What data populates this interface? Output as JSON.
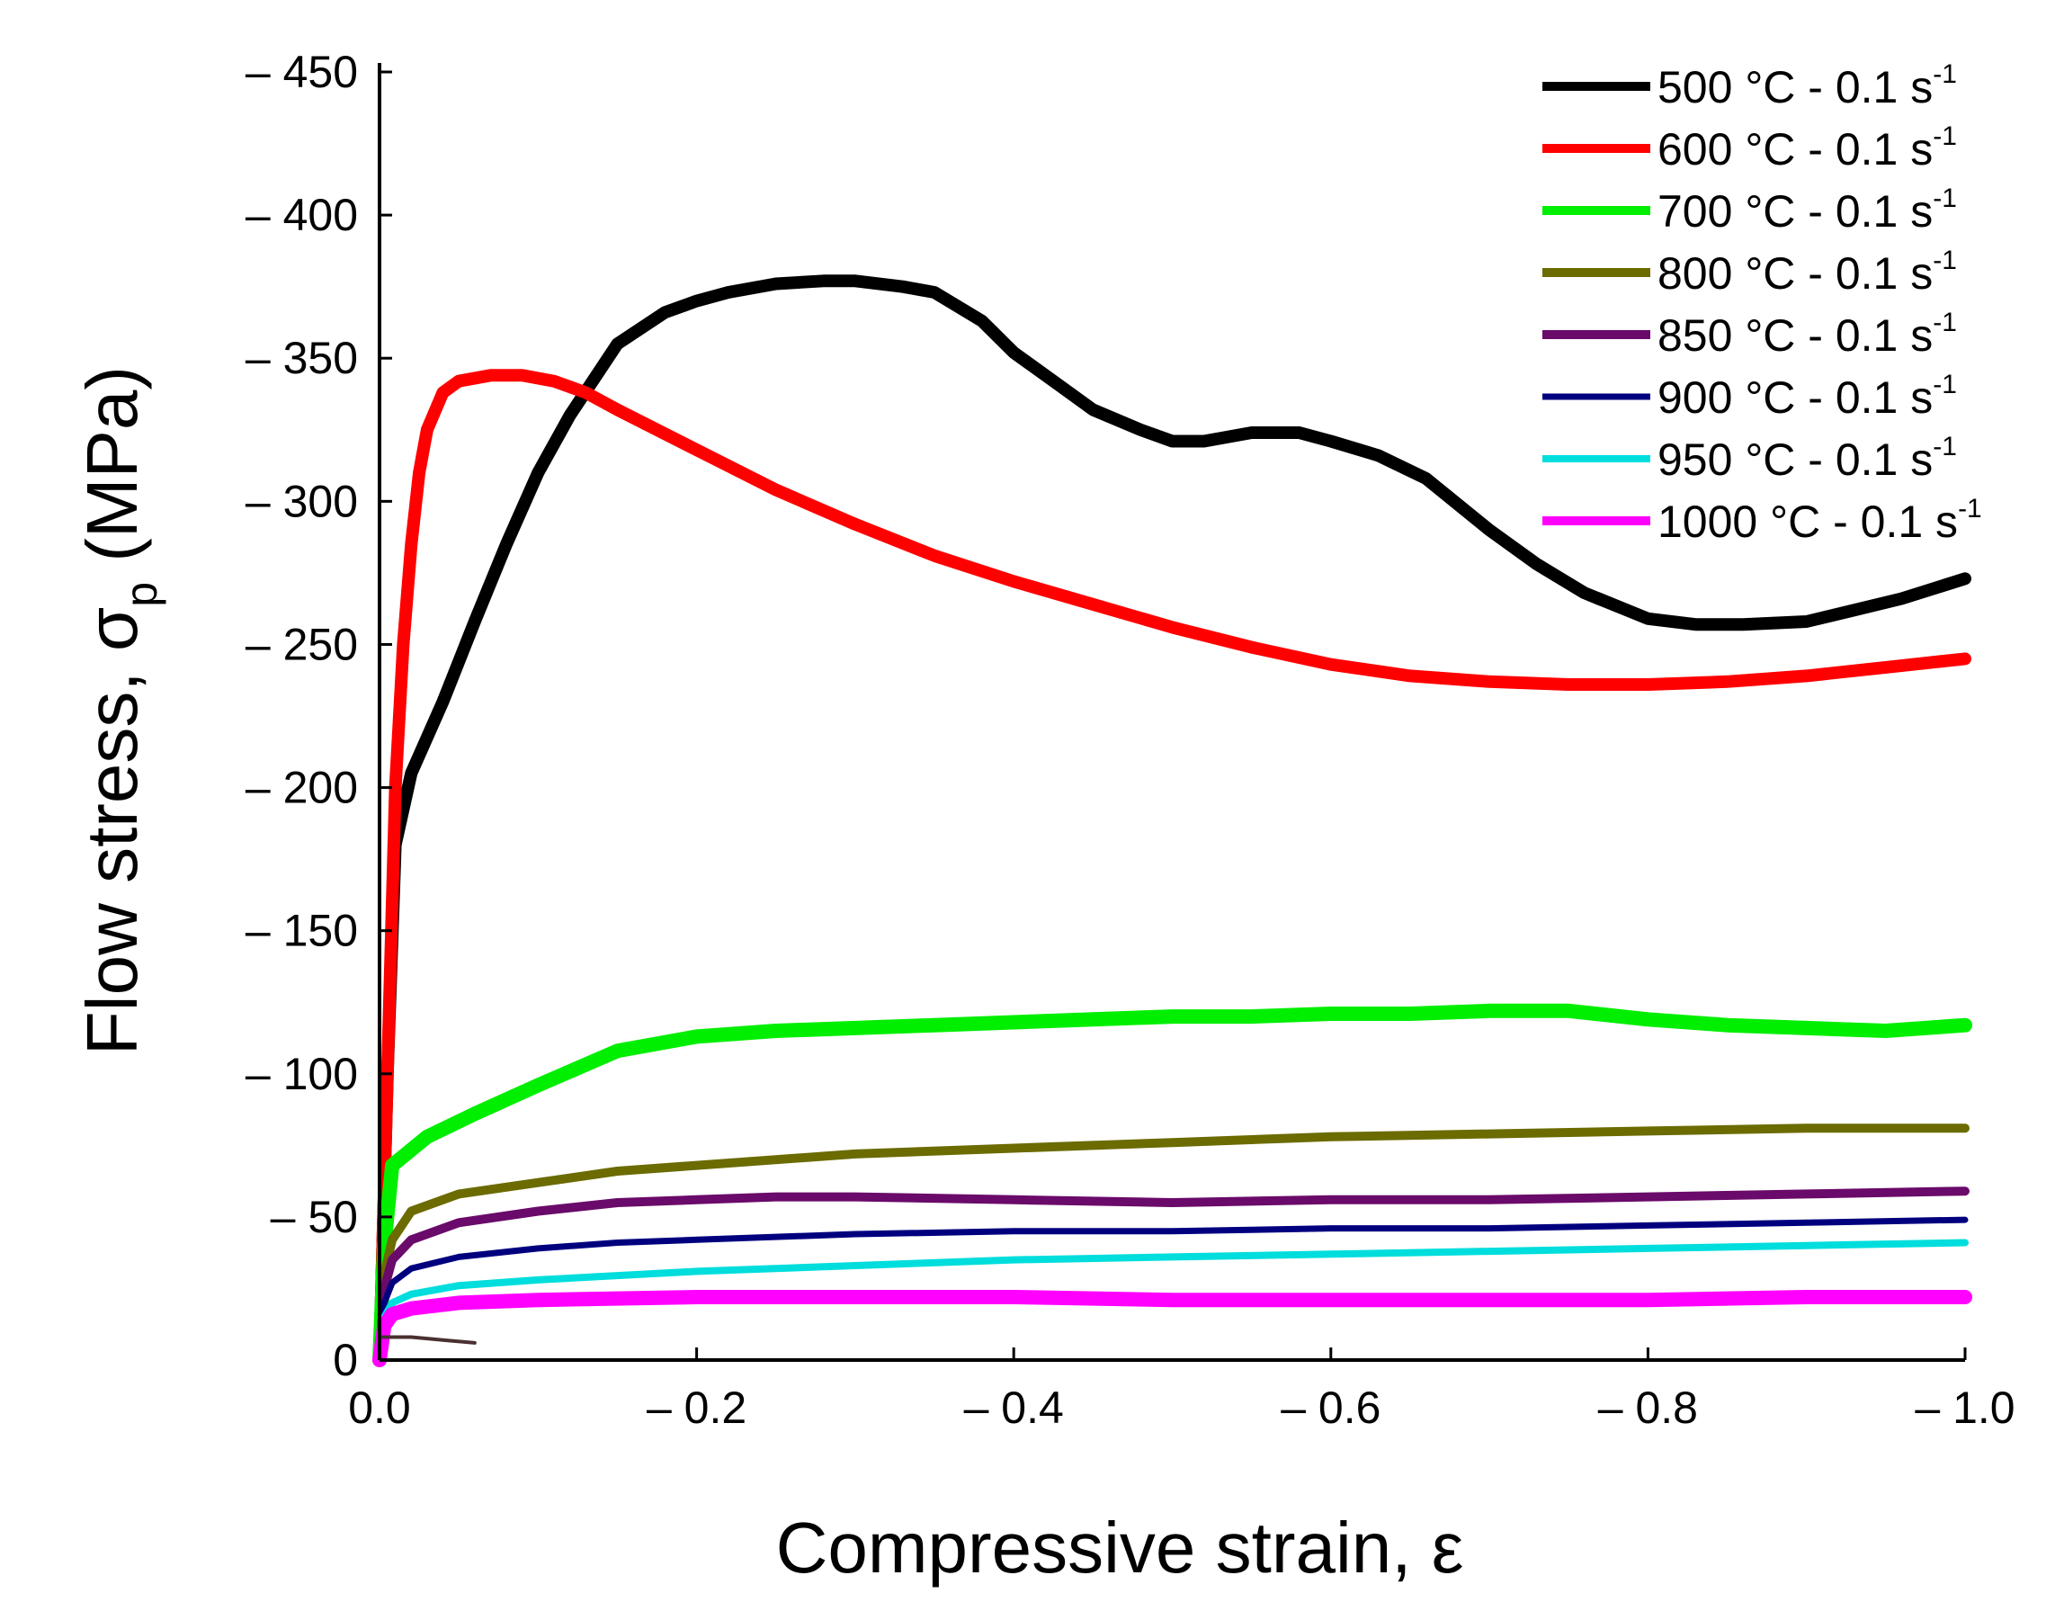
{
  "chart_data": {
    "type": "line",
    "title": "",
    "xlabel": "Compressive strain, ε",
    "ylabel": {
      "main": "Flow stress, σ",
      "subscript": "p",
      "unit": " (MPa)"
    },
    "xlim": [
      0,
      -1.0
    ],
    "ylim": [
      0,
      -450
    ],
    "xticks": [
      0,
      -0.2,
      -0.4,
      -0.6,
      -0.8,
      -1.0
    ],
    "xtick_labels": [
      "0.0",
      "– 0.2",
      "– 0.4",
      "– 0.6",
      "– 0.8",
      "– 1.0"
    ],
    "yticks": [
      0,
      -50,
      -100,
      -150,
      -200,
      -250,
      -300,
      -350,
      -400,
      -450
    ],
    "ytick_labels": [
      "0",
      "– 50",
      "– 100",
      "– 150",
      "– 200",
      "– 250",
      "– 300",
      "– 350",
      "– 400",
      "– 450"
    ],
    "grid": false,
    "legend_position": "top-right",
    "series": [
      {
        "name": "500 °C - 0.1 s⁻¹",
        "label_main": "500 °C - 0.1 s",
        "label_sup": "-1",
        "color": "#000000",
        "width": 14,
        "x": [
          0,
          -0.005,
          -0.01,
          -0.02,
          -0.04,
          -0.06,
          -0.08,
          -0.1,
          -0.12,
          -0.15,
          -0.18,
          -0.2,
          -0.22,
          -0.25,
          -0.28,
          -0.3,
          -0.33,
          -0.35,
          -0.38,
          -0.4,
          -0.43,
          -0.45,
          -0.48,
          -0.5,
          -0.52,
          -0.55,
          -0.58,
          -0.6,
          -0.63,
          -0.66,
          -0.7,
          -0.73,
          -0.76,
          -0.8,
          -0.83,
          -0.86,
          -0.9,
          -0.93,
          -0.96,
          -1.0
        ],
        "y": [
          0,
          -100,
          -180,
          -205,
          -230,
          -258,
          -285,
          -310,
          -330,
          -355,
          -366,
          -370,
          -373,
          -376,
          -377,
          -377,
          -375,
          -373,
          -363,
          -352,
          -340,
          -332,
          -325,
          -321,
          -321,
          -324,
          -324,
          -321,
          -316,
          -308,
          -290,
          -278,
          -268,
          -259,
          -257,
          -257,
          -258,
          -262,
          -266,
          -273
        ]
      },
      {
        "name": "600 °C - 0.1 s⁻¹",
        "label_main": "600 °C - 0.1 s",
        "label_sup": "-1",
        "color": "#ff0000",
        "width": 14,
        "x": [
          0,
          -0.005,
          -0.01,
          -0.015,
          -0.02,
          -0.025,
          -0.03,
          -0.04,
          -0.05,
          -0.07,
          -0.09,
          -0.11,
          -0.13,
          -0.15,
          -0.2,
          -0.25,
          -0.3,
          -0.35,
          -0.4,
          -0.45,
          -0.5,
          -0.55,
          -0.6,
          -0.65,
          -0.7,
          -0.75,
          -0.8,
          -0.85,
          -0.9,
          -0.95,
          -1.0
        ],
        "y": [
          0,
          -100,
          -200,
          -250,
          -285,
          -310,
          -325,
          -338,
          -342,
          -344,
          -344,
          -342,
          -338,
          -332,
          -318,
          -304,
          -292,
          -281,
          -272,
          -264,
          -256,
          -249,
          -243,
          -239,
          -237,
          -236,
          -236,
          -237,
          -239,
          -242,
          -245
        ]
      },
      {
        "name": "700 °C - 0.1 s⁻¹",
        "label_main": "700 °C - 0.1 s",
        "label_sup": "-1",
        "color": "#00ee00",
        "width": 16,
        "x": [
          0,
          -0.003,
          -0.008,
          -0.03,
          -0.06,
          -0.1,
          -0.15,
          -0.2,
          -0.25,
          -0.3,
          -0.35,
          -0.4,
          -0.45,
          -0.5,
          -0.55,
          -0.6,
          -0.65,
          -0.7,
          -0.75,
          -0.8,
          -0.85,
          -0.9,
          -0.95,
          -1.0
        ],
        "y": [
          0,
          -40,
          -68,
          -78,
          -86,
          -96,
          -108,
          -113,
          -115,
          -116,
          -117,
          -118,
          -119,
          -120,
          -120,
          -121,
          -121,
          -122,
          -122,
          -119,
          -117,
          -116,
          -115,
          -117
        ]
      },
      {
        "name": "800 °C - 0.1 s⁻¹",
        "label_main": "800 °C - 0.1 s",
        "label_sup": "-1",
        "color": "#6b6b00",
        "width": 10,
        "x": [
          0,
          -0.003,
          -0.008,
          -0.02,
          -0.05,
          -0.1,
          -0.15,
          -0.2,
          -0.3,
          -0.4,
          -0.5,
          -0.6,
          -0.7,
          -0.8,
          -0.9,
          -1.0
        ],
        "y": [
          0,
          -30,
          -42,
          -52,
          -58,
          -62,
          -66,
          -68,
          -72,
          -74,
          -76,
          -78,
          -79,
          -80,
          -81,
          -81
        ]
      },
      {
        "name": "850 °C - 0.1 s⁻¹",
        "label_main": "850 °C - 0.1 s",
        "label_sup": "-1",
        "color": "#6a0a6a",
        "width": 10,
        "x": [
          0,
          -0.003,
          -0.008,
          -0.02,
          -0.05,
          -0.1,
          -0.15,
          -0.2,
          -0.25,
          -0.3,
          -0.4,
          -0.5,
          -0.6,
          -0.7,
          -0.8,
          -0.9,
          -1.0
        ],
        "y": [
          0,
          -25,
          -35,
          -42,
          -48,
          -52,
          -55,
          -56,
          -57,
          -57,
          -56,
          -55,
          -56,
          -56,
          -57,
          -58,
          -59
        ]
      },
      {
        "name": "900 °C - 0.1 s⁻¹",
        "label_main": "900 °C - 0.1 s",
        "label_sup": "-1",
        "color": "#00007f",
        "width": 7,
        "x": [
          0,
          -0.003,
          -0.008,
          -0.02,
          -0.05,
          -0.1,
          -0.15,
          -0.2,
          -0.3,
          -0.4,
          -0.5,
          -0.6,
          -0.7,
          -0.8,
          -0.9,
          -1.0
        ],
        "y": [
          0,
          -20,
          -27,
          -32,
          -36,
          -39,
          -41,
          -42,
          -44,
          -45,
          -45,
          -46,
          -46,
          -47,
          -48,
          -49
        ]
      },
      {
        "name": "950 °C - 0.1 s⁻¹",
        "label_main": "950 °C - 0.1 s",
        "label_sup": "-1",
        "color": "#00dddd",
        "width": 8,
        "x": [
          0,
          -0.003,
          -0.008,
          -0.02,
          -0.05,
          -0.1,
          -0.2,
          -0.3,
          -0.4,
          -0.5,
          -0.6,
          -0.7,
          -0.8,
          -0.9,
          -1.0
        ],
        "y": [
          0,
          -15,
          -20,
          -23,
          -26,
          -28,
          -31,
          -33,
          -35,
          -36,
          -37,
          -38,
          -39,
          -40,
          -41
        ]
      },
      {
        "name": "1000 °C - 0.1 s⁻¹",
        "label_main": "1000 °C - 0.1 s",
        "label_sup": "-1",
        "color": "#ff00ff",
        "width": 16,
        "x": [
          0,
          -0.003,
          -0.008,
          -0.02,
          -0.05,
          -0.1,
          -0.2,
          -0.3,
          -0.4,
          -0.5,
          -0.6,
          -0.7,
          -0.8,
          -0.9,
          -1.0
        ],
        "y": [
          0,
          -12,
          -16,
          -18,
          -20,
          -21,
          -22,
          -22,
          -22,
          -21,
          -21,
          -21,
          -21,
          -22,
          -22
        ]
      },
      {
        "name": "initial segment (unlabeled)",
        "legend": false,
        "color": "#4a3030",
        "width": 4,
        "x": [
          0,
          -0.02,
          -0.04,
          -0.06
        ],
        "y": [
          -8,
          -8,
          -7,
          -6
        ]
      }
    ]
  }
}
